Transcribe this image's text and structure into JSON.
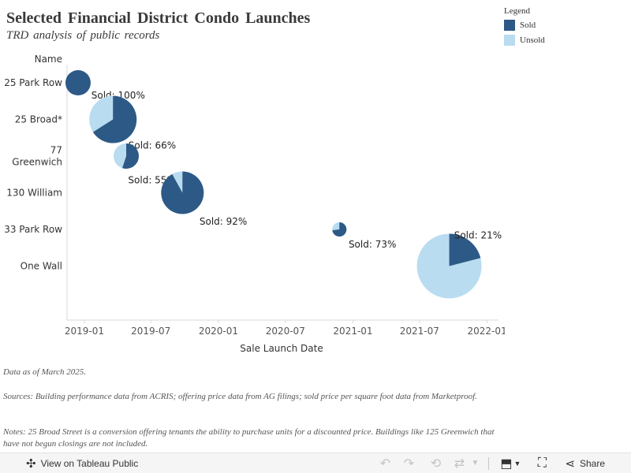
{
  "chart_data": {
    "type": "pie-scatter",
    "title": "Selected Financial District Condo Launches",
    "subtitle": "TRD analysis of public records",
    "xlabel": "Sale Launch Date",
    "ylabel": "Name",
    "x_ticks": [
      "2019-01",
      "2019-07",
      "2020-01",
      "2020-07",
      "2021-01",
      "2021-07",
      "2022-01"
    ],
    "x_range": [
      "2018-11-15",
      "2022-02-01"
    ],
    "legend": {
      "title": "Legend",
      "placement": "top-right",
      "entries": [
        {
          "name": "Sold",
          "color": "#2d5986"
        },
        {
          "name": "Unsold",
          "color": "#b9dcf0"
        }
      ]
    },
    "series": [
      {
        "name": "25 Park Row",
        "name_lines": [
          "25 Park Row"
        ],
        "launch": "2018-12-15",
        "sold_pct": 100,
        "label": "Sold: 100%",
        "size": 16
      },
      {
        "name": "25 Broad*",
        "name_lines": [
          "25 Broad*"
        ],
        "launch": "2019-03-20",
        "sold_pct": 66,
        "label": "Sold: 66%",
        "size": 30
      },
      {
        "name": "77 Greenwich",
        "name_lines": [
          "77",
          "Greenwich"
        ],
        "launch": "2019-04-25",
        "sold_pct": 55,
        "label": "Sold: 55%",
        "size": 16
      },
      {
        "name": "130 William",
        "name_lines": [
          "130 William"
        ],
        "launch": "2019-09-25",
        "sold_pct": 92,
        "label": "Sold: 92%",
        "size": 27
      },
      {
        "name": "33 Park Row",
        "name_lines": [
          "33 Park Row"
        ],
        "launch": "2020-11-25",
        "sold_pct": 73,
        "label": "Sold: 73%",
        "size": 9
      },
      {
        "name": "One Wall",
        "name_lines": [
          "One Wall"
        ],
        "launch": "2021-09-20",
        "sold_pct": 21,
        "label": "Sold: 21%",
        "size": 41
      }
    ]
  },
  "notes": {
    "date": "Data as of March 2025.",
    "sources": "Sources: Building performance data from ACRIS; offering price data from AG filings; sold price per square foot data from Marketproof.",
    "notes": "Notes: 25 Broad Street is a conversion offering tenants the ability to purchase units for a discounted price. Buildings like 125 Greenwich that have not begun closings are not included."
  },
  "toolbar": {
    "view_label": "View on Tableau Public",
    "view_icon": "tableau-icon",
    "share_label": "Share",
    "share_icon": "share-icon",
    "icons": [
      "undo-icon",
      "redo-icon",
      "revert-icon",
      "refresh-icon",
      "dropdown-icon",
      "download-icon",
      "fullscreen-icon"
    ]
  }
}
